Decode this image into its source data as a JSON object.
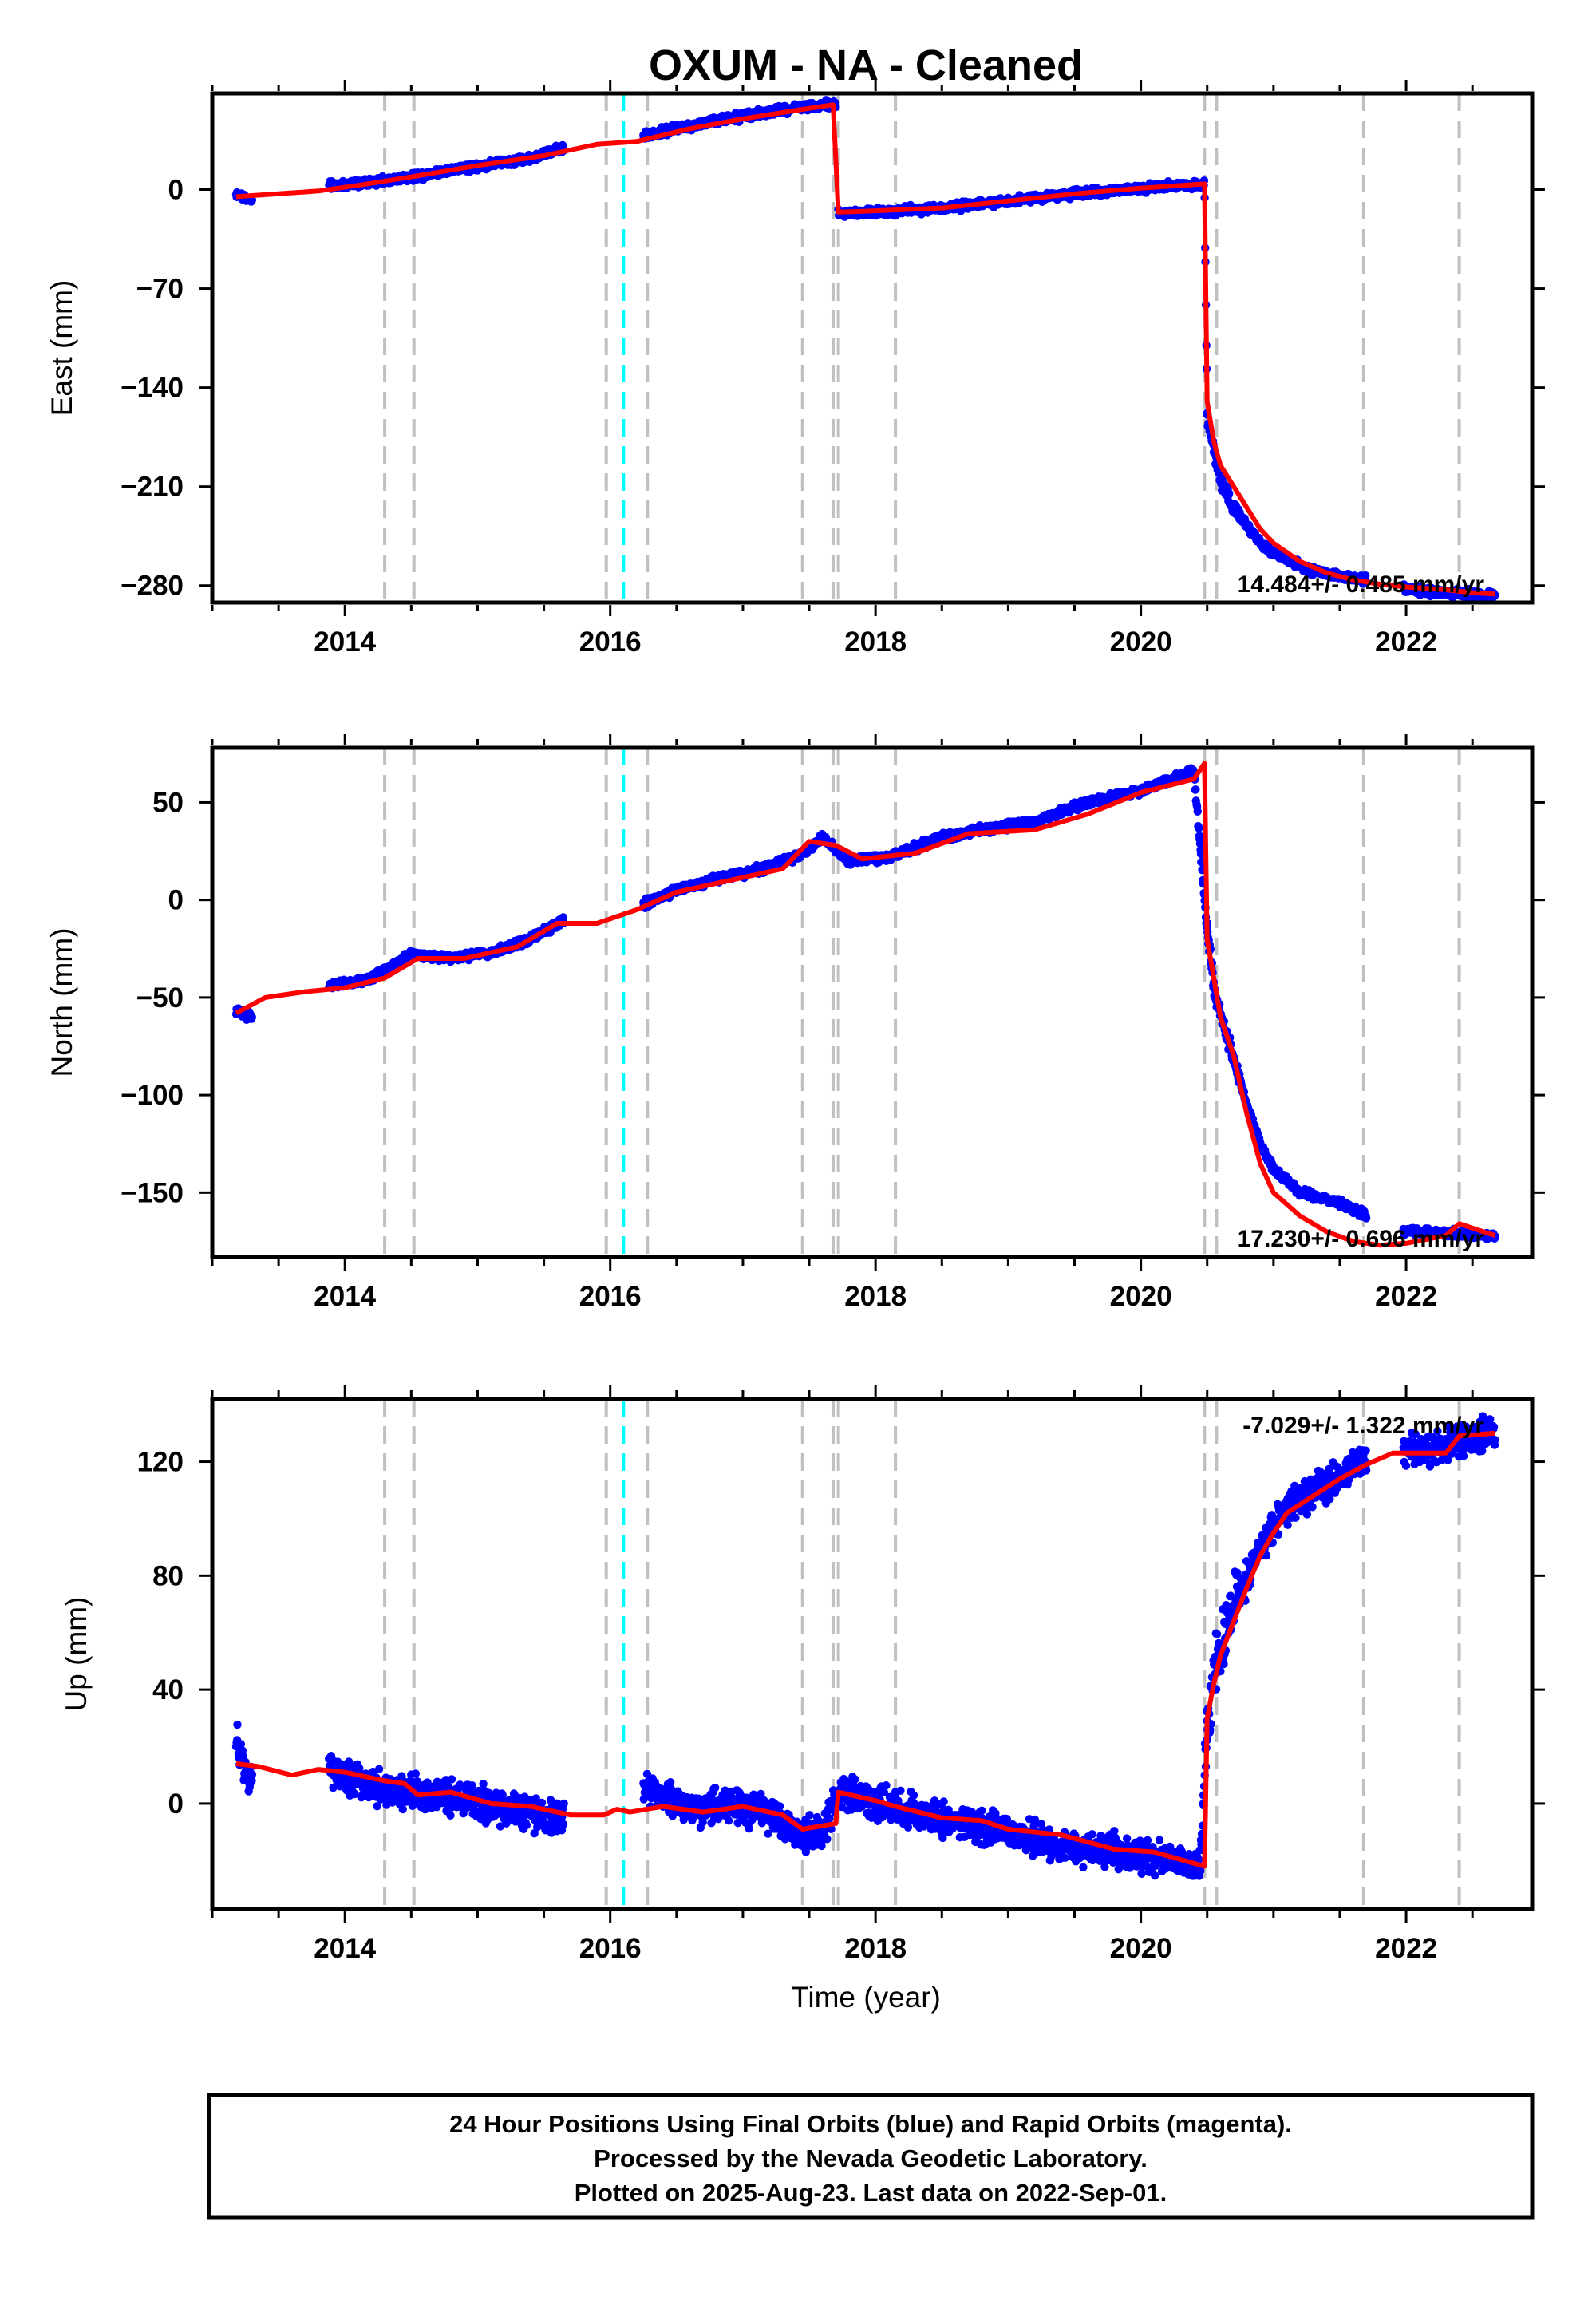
{
  "figure": {
    "title": "OXUM  - NA - Cleaned",
    "xlabel": "Time (year)"
  },
  "colors": {
    "final_orbits": "#0000ff",
    "rapid_orbits": "#ff00ff",
    "model": "#ff0000",
    "steps_gray": "#c0c0c0",
    "event_cyan": "#00ffff"
  },
  "footer": {
    "line1": "24 Hour Positions Using Final Orbits (blue) and Rapid Orbits (magenta).",
    "line2": "Processed by the Nevada Geodetic Laboratory.",
    "line3": "Plotted on 2025-Aug-23. Last data on 2022-Sep-01."
  },
  "chart_data": [
    {
      "type": "scatter",
      "panel": "east",
      "ylabel": "East (mm)",
      "xlim": [
        2013.0,
        2022.95
      ],
      "ylim": [
        -292,
        68
      ],
      "x_ticks": [
        2014,
        2016,
        2018,
        2020,
        2022
      ],
      "y_ticks": [
        0,
        -70,
        -140,
        -210,
        -280
      ],
      "rate_label": "14.484+/- 0.485 mm/yr",
      "vertical_lines_gray": [
        2014.3,
        2014.52,
        2015.97,
        2016.28,
        2017.45,
        2017.68,
        2017.72,
        2018.15,
        2020.48,
        2020.57,
        2021.68,
        2022.4
      ],
      "vertical_lines_cyan": [
        2016.1
      ],
      "data_segments": [
        [
          2013.18,
          2013.3
        ],
        [
          2013.88,
          2015.65
        ],
        [
          2016.25,
          2017.7
        ],
        [
          2017.72,
          2020.5
        ],
        [
          2020.5,
          2021.7
        ],
        [
          2021.98,
          2022.67
        ]
      ],
      "series": [
        {
          "kind": "points",
          "x": [
            2013.18,
            2013.25,
            2013.3,
            2013.9,
            2014.2,
            2014.5,
            2014.8,
            2015.1,
            2015.4,
            2015.65,
            2016.25,
            2016.6,
            2016.9,
            2017.2,
            2017.5,
            2017.7,
            2017.72,
            2018.0,
            2018.5,
            2019.0,
            2019.5,
            2020.0,
            2020.48,
            2020.5,
            2020.55,
            2020.6,
            2020.7,
            2020.8,
            2020.9,
            2021.0,
            2021.2,
            2021.4,
            2021.7,
            2022.0,
            2022.3,
            2022.67
          ],
          "y": [
            -3,
            -6,
            -8,
            3,
            5,
            9,
            14,
            18,
            22,
            30,
            38,
            45,
            50,
            55,
            59,
            61,
            -17,
            -16,
            -13,
            -8,
            -3,
            1,
            4,
            -160,
            -185,
            -205,
            -225,
            -238,
            -250,
            -257,
            -266,
            -272,
            -276,
            -282,
            -285,
            -287
          ]
        },
        {
          "kind": "line",
          "x": [
            2013.18,
            2013.5,
            2013.8,
            2014.1,
            2014.5,
            2015.0,
            2015.5,
            2015.9,
            2016.2,
            2016.6,
            2017.0,
            2017.4,
            2017.68,
            2017.72,
            2018.0,
            2018.5,
            2019.0,
            2019.5,
            2020.0,
            2020.48,
            2020.5,
            2020.55,
            2020.6,
            2020.7,
            2020.8,
            2020.9,
            2021.0,
            2021.2,
            2021.4,
            2021.6,
            2021.8,
            2022.0,
            2022.3,
            2022.5,
            2022.67
          ],
          "y": [
            -5,
            -3,
            -1,
            3,
            9,
            17,
            24,
            32,
            34,
            43,
            50,
            56,
            60,
            -16,
            -15,
            -13,
            -8,
            -3,
            1,
            4,
            -150,
            -178,
            -195,
            -210,
            -225,
            -240,
            -250,
            -263,
            -271,
            -276,
            -279,
            -281,
            -283,
            -285,
            -286
          ]
        }
      ]
    },
    {
      "type": "scatter",
      "panel": "north",
      "ylabel": "North (mm)",
      "xlim": [
        2013.0,
        2022.95
      ],
      "ylim": [
        -183,
        78
      ],
      "x_ticks": [
        2014,
        2016,
        2018,
        2020,
        2022
      ],
      "y_ticks": [
        50,
        0,
        -50,
        -100,
        -150
      ],
      "rate_label": "17.230+/- 0.696 mm/yr",
      "vertical_lines_gray": [
        2014.3,
        2014.52,
        2015.97,
        2016.28,
        2017.45,
        2017.68,
        2017.72,
        2018.15,
        2020.48,
        2020.57,
        2021.68,
        2022.4
      ],
      "vertical_lines_cyan": [
        2016.1
      ],
      "data_segments": [
        [
          2013.18,
          2013.3
        ],
        [
          2013.88,
          2015.65
        ],
        [
          2016.25,
          2017.7
        ],
        [
          2017.72,
          2020.5
        ],
        [
          2020.5,
          2021.7
        ],
        [
          2021.98,
          2022.67
        ]
      ],
      "series": [
        {
          "kind": "points",
          "x": [
            2013.18,
            2013.25,
            2013.3,
            2013.9,
            2014.2,
            2014.5,
            2014.8,
            2015.1,
            2015.4,
            2015.65,
            2016.25,
            2016.5,
            2016.8,
            2017.1,
            2017.4,
            2017.6,
            2017.8,
            2018.1,
            2018.5,
            2018.8,
            2019.2,
            2019.6,
            2020.0,
            2020.4,
            2020.5,
            2020.55,
            2020.65,
            2020.8,
            2020.9,
            2021.0,
            2021.2,
            2021.5,
            2021.7,
            2022.0,
            2022.3,
            2022.67
          ],
          "y": [
            -57,
            -59,
            -60,
            -44,
            -40,
            -28,
            -30,
            -27,
            -20,
            -10,
            -2,
            5,
            11,
            15,
            22,
            32,
            20,
            22,
            32,
            36,
            40,
            50,
            56,
            66,
            -15,
            -45,
            -70,
            -105,
            -125,
            -138,
            -150,
            -155,
            -162,
            -170,
            -171,
            -172
          ]
        },
        {
          "kind": "line",
          "x": [
            2013.18,
            2013.4,
            2013.7,
            2014.0,
            2014.3,
            2014.55,
            2014.9,
            2015.3,
            2015.6,
            2015.9,
            2016.2,
            2016.5,
            2016.9,
            2017.3,
            2017.5,
            2017.7,
            2017.9,
            2018.3,
            2018.7,
            2019.2,
            2019.6,
            2020.0,
            2020.4,
            2020.48,
            2020.5,
            2020.55,
            2020.6,
            2020.7,
            2020.8,
            2020.9,
            2021.0,
            2021.2,
            2021.4,
            2021.6,
            2021.8,
            2022.0,
            2022.3,
            2022.4,
            2022.67
          ],
          "y": [
            -58,
            -50,
            -47,
            -45,
            -40,
            -30,
            -30,
            -24,
            -12,
            -12,
            -5,
            4,
            10,
            16,
            30,
            28,
            21,
            24,
            34,
            36,
            44,
            55,
            62,
            70,
            -20,
            -40,
            -60,
            -80,
            -110,
            -135,
            -150,
            -162,
            -170,
            -175,
            -177,
            -176,
            -172,
            -166,
            -172
          ]
        }
      ]
    },
    {
      "type": "scatter",
      "panel": "up",
      "ylabel": "Up (mm)",
      "xlim": [
        2013.0,
        2022.95
      ],
      "ylim": [
        -37,
        142
      ],
      "x_ticks": [
        2014,
        2016,
        2018,
        2020,
        2022
      ],
      "y_ticks": [
        120,
        80,
        40,
        0
      ],
      "rate_label": "-7.029+/- 1.322 mm/yr",
      "vertical_lines_gray": [
        2014.3,
        2014.52,
        2015.97,
        2016.28,
        2017.45,
        2017.68,
        2017.72,
        2018.15,
        2020.48,
        2020.57,
        2021.68,
        2022.4
      ],
      "vertical_lines_cyan": [
        2016.1
      ],
      "data_segments": [
        [
          2013.18,
          2013.3
        ],
        [
          2013.88,
          2015.65
        ],
        [
          2016.25,
          2017.7
        ],
        [
          2017.72,
          2020.5
        ],
        [
          2020.5,
          2021.7
        ],
        [
          2021.98,
          2022.67
        ]
      ],
      "series": [
        {
          "kind": "points",
          "x": [
            2013.18,
            2013.24,
            2013.3,
            2013.9,
            2014.2,
            2014.5,
            2014.8,
            2015.1,
            2015.4,
            2015.65,
            2016.3,
            2016.6,
            2016.9,
            2017.2,
            2017.45,
            2017.6,
            2017.75,
            2018.0,
            2018.5,
            2019.0,
            2019.5,
            2020.0,
            2020.45,
            2020.5,
            2020.55,
            2020.7,
            2020.9,
            2021.1,
            2021.4,
            2021.65,
            2022.0,
            2022.3,
            2022.67
          ],
          "y": [
            22,
            12,
            6,
            12,
            6,
            4,
            2,
            0,
            -3,
            -6,
            5,
            -2,
            0,
            -3,
            -12,
            -10,
            5,
            0,
            -6,
            -10,
            -16,
            -18,
            -22,
            30,
            45,
            68,
            90,
            104,
            112,
            120,
            124,
            126,
            130
          ]
        },
        {
          "kind": "line",
          "x": [
            2013.18,
            2013.35,
            2013.6,
            2013.8,
            2014.0,
            2014.3,
            2014.45,
            2014.55,
            2014.8,
            2015.1,
            2015.4,
            2015.7,
            2015.95,
            2016.05,
            2016.15,
            2016.27,
            2016.4,
            2016.7,
            2017.0,
            2017.3,
            2017.45,
            2017.7,
            2017.72,
            2018.0,
            2018.15,
            2018.5,
            2018.8,
            2019.0,
            2019.4,
            2019.8,
            2020.1,
            2020.48,
            2020.5,
            2020.55,
            2020.6,
            2020.7,
            2020.8,
            2020.9,
            2021.0,
            2021.1,
            2021.3,
            2021.5,
            2021.7,
            2021.9,
            2022.1,
            2022.3,
            2022.4,
            2022.67
          ],
          "y": [
            14,
            13,
            10,
            12,
            11,
            8,
            7,
            3,
            4,
            0,
            -1,
            -4,
            -4,
            -2,
            -3,
            -2,
            -1,
            -3,
            -1,
            -4,
            -9,
            -7,
            4,
            1,
            -1,
            -5,
            -6,
            -9,
            -11,
            -16,
            -17,
            -22,
            30,
            42,
            52,
            64,
            76,
            87,
            95,
            102,
            108,
            114,
            119,
            123,
            123,
            123,
            129,
            130
          ]
        }
      ]
    }
  ]
}
